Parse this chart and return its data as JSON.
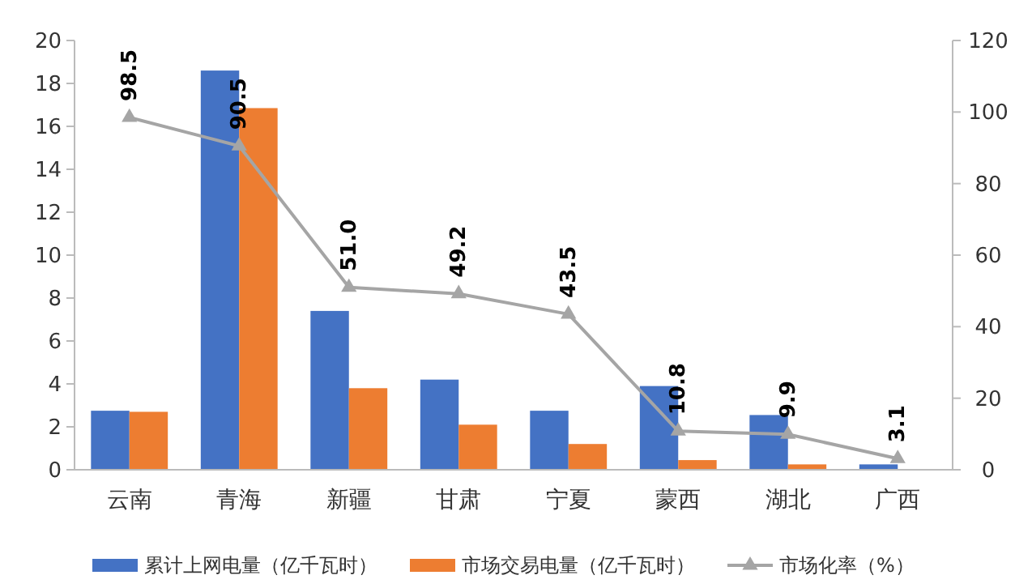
{
  "chart_data": {
    "type": "bar",
    "categories": [
      "云南",
      "青海",
      "新疆",
      "甘肃",
      "宁夏",
      "蒙西",
      "湖北",
      "广西"
    ],
    "series": [
      {
        "name": "累计上网电量（亿千瓦时）",
        "color": "#4472c4",
        "values": [
          2.75,
          18.6,
          7.4,
          4.2,
          2.75,
          3.9,
          2.55,
          0.25
        ]
      },
      {
        "name": "市场交易电量（亿千瓦时）",
        "color": "#ed7d31",
        "values": [
          2.7,
          16.85,
          3.8,
          2.1,
          1.2,
          0.45,
          0.25,
          null
        ]
      },
      {
        "name": "市场化率（%）",
        "type": "line",
        "axis": "y2",
        "color": "#a5a5a5",
        "marker": "triangle",
        "values": [
          98.5,
          90.5,
          51.0,
          49.2,
          43.5,
          10.8,
          9.9,
          3.1
        ],
        "value_labels": [
          "98.5",
          "90.5",
          "51.0",
          "49.2",
          "43.5",
          "10.8",
          "9.9",
          "3.1"
        ]
      }
    ],
    "ylim": [
      0,
      20
    ],
    "yticks": [
      0,
      2,
      4,
      6,
      8,
      10,
      12,
      14,
      16,
      18,
      20
    ],
    "y2lim": [
      0,
      120
    ],
    "y2ticks": [
      0,
      20,
      40,
      60,
      80,
      100,
      120
    ],
    "grid": false,
    "legend": "bottom"
  }
}
